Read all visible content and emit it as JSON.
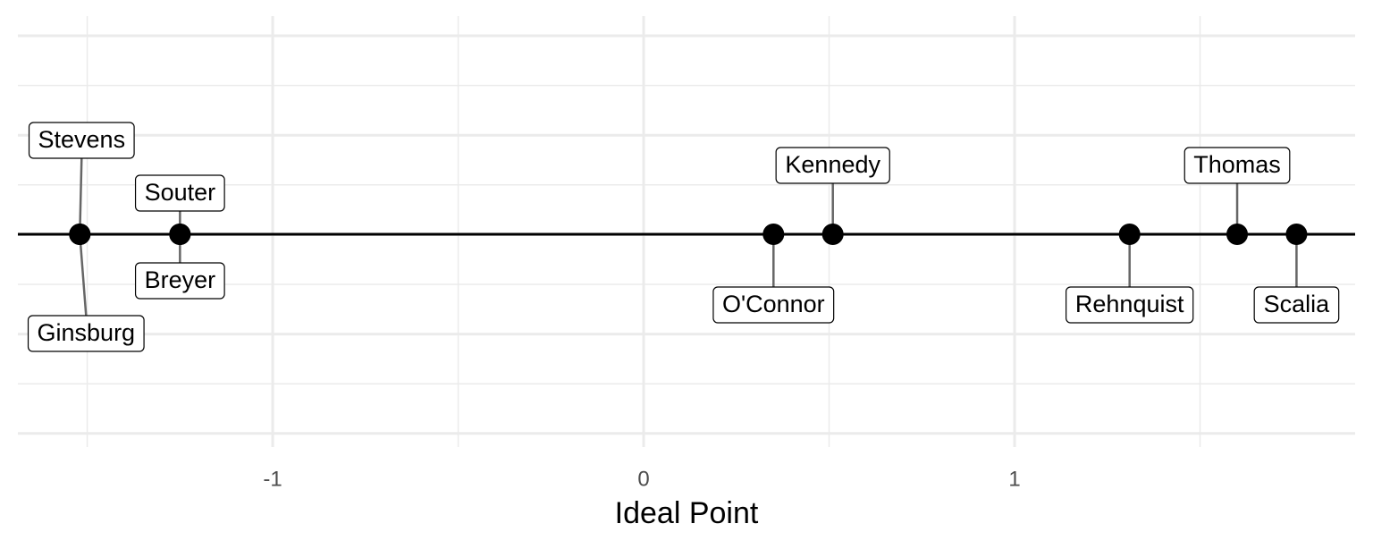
{
  "chart_data": {
    "type": "dot",
    "categories": [
      "Stevens",
      "Ginsburg",
      "Souter",
      "Breyer",
      "O'Connor",
      "Kennedy",
      "Rehnquist",
      "Thomas",
      "Scalia"
    ],
    "values": [
      -1.52,
      -1.52,
      -1.25,
      -1.25,
      0.35,
      0.51,
      1.31,
      1.6,
      1.76
    ],
    "color": "#000000",
    "xlim": [
      -1.687,
      1.918
    ],
    "xticks": [
      -1,
      0,
      1
    ],
    "xlabel": "Ideal Point",
    "grid": true
  }
}
